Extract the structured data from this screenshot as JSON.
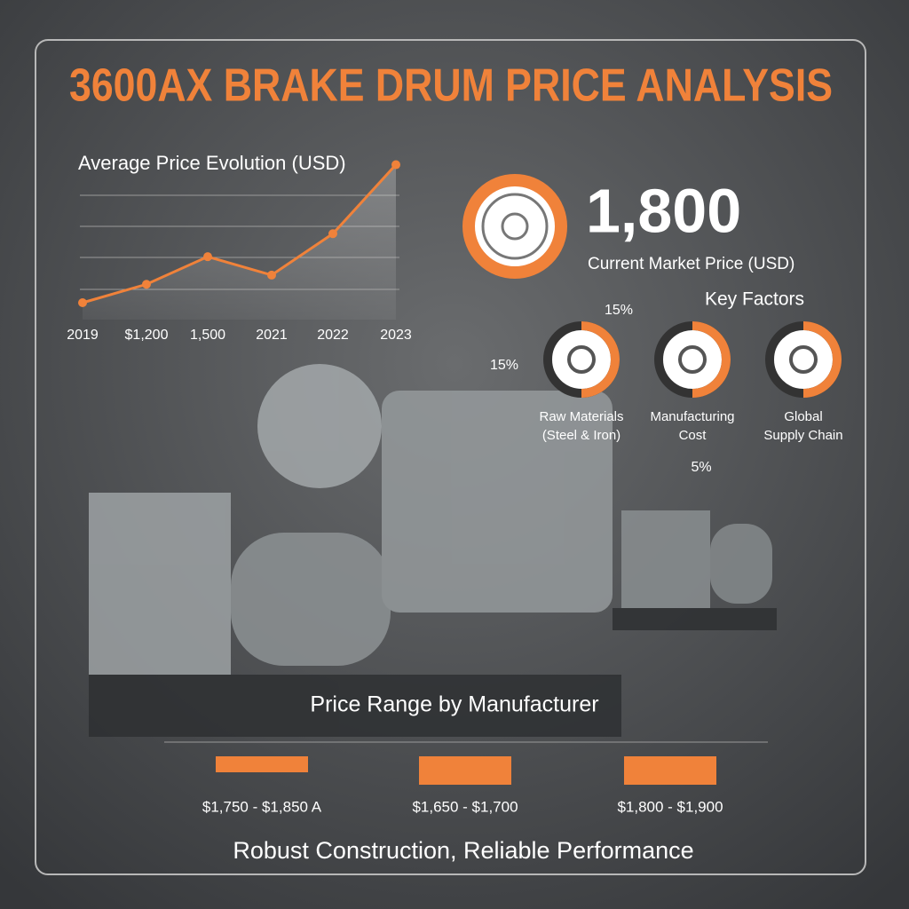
{
  "title": "3600AX BRAKE DRUM PRICE ANALYSIS",
  "price_chart": {
    "type": "line",
    "title": "Average Price Evolution (USD)",
    "categories": [
      "2019",
      "$1,200",
      "1,500",
      "2021",
      "2022",
      "2023"
    ],
    "values": [
      1110,
      1230,
      1410,
      1290,
      1560,
      2010
    ],
    "ylim": [
      1000,
      2100
    ],
    "color": "#f0823a"
  },
  "current_price": {
    "value": "1,800",
    "label": "Current Market Price (USD)"
  },
  "key_factors": {
    "title": "Key Factors",
    "percent_labels": [
      "15%",
      "15%",
      "5%"
    ],
    "items": [
      "Raw Materials (Steel & Iron)",
      "Manufacturing Cost",
      "Global Supply Chain"
    ]
  },
  "manufacturers": {
    "title": "Price Range by Manufacturer",
    "ranges": [
      "$1,750 - $1,850 A",
      "$1,650 - $1,700",
      "$1,800 - $1,900"
    ]
  },
  "tagline": "Robust Construction, Reliable Performance"
}
